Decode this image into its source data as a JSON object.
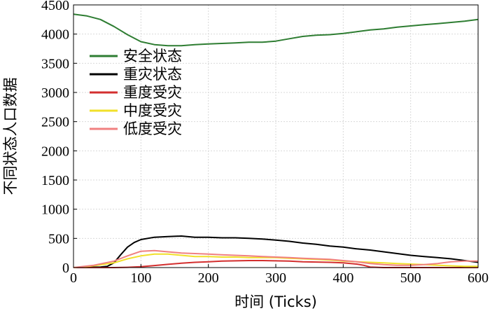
{
  "chart_data": {
    "type": "line",
    "xlabel": "时间 (Ticks)",
    "ylabel": "不同状态人口数据",
    "xlim": [
      0,
      600
    ],
    "ylim": [
      0,
      4500
    ],
    "xticks": [
      0,
      100,
      200,
      300,
      400,
      500,
      600
    ],
    "yticks": [
      0,
      500,
      1000,
      1500,
      2000,
      2500,
      3000,
      3500,
      4000,
      4500
    ],
    "grid": true,
    "legend_position": "top-left",
    "series": [
      {
        "name": "安全状态",
        "color": "#2e7d32",
        "x": [
          0,
          20,
          40,
          60,
          80,
          100,
          120,
          140,
          160,
          180,
          200,
          220,
          240,
          260,
          280,
          300,
          320,
          340,
          360,
          380,
          400,
          420,
          440,
          460,
          480,
          500,
          520,
          540,
          560,
          580,
          600
        ],
        "y": [
          4340,
          4310,
          4250,
          4130,
          3990,
          3870,
          3820,
          3800,
          3800,
          3820,
          3830,
          3840,
          3850,
          3860,
          3860,
          3880,
          3920,
          3960,
          3980,
          3990,
          4010,
          4040,
          4070,
          4090,
          4120,
          4140,
          4160,
          4180,
          4200,
          4220,
          4250
        ]
      },
      {
        "name": "重灾状态",
        "color": "#000000",
        "x": [
          0,
          20,
          40,
          50,
          60,
          70,
          80,
          90,
          100,
          120,
          140,
          160,
          180,
          200,
          220,
          240,
          260,
          280,
          300,
          320,
          340,
          360,
          380,
          400,
          420,
          440,
          460,
          480,
          500,
          520,
          540,
          560,
          580,
          600
        ],
        "y": [
          0,
          5,
          10,
          20,
          80,
          220,
          350,
          430,
          480,
          520,
          530,
          540,
          520,
          520,
          510,
          510,
          500,
          490,
          470,
          450,
          420,
          400,
          370,
          350,
          320,
          300,
          270,
          240,
          210,
          190,
          170,
          150,
          120,
          90
        ]
      },
      {
        "name": "重度受灾",
        "color": "#d32f2f",
        "x": [
          0,
          60,
          80,
          100,
          120,
          140,
          160,
          180,
          200,
          220,
          240,
          260,
          280,
          300,
          320,
          340,
          360,
          380,
          400,
          420,
          430,
          440,
          460,
          480,
          500,
          520,
          540,
          560,
          580,
          600
        ],
        "y": [
          0,
          0,
          5,
          15,
          35,
          55,
          75,
          90,
          100,
          110,
          115,
          120,
          120,
          115,
          110,
          100,
          95,
          90,
          80,
          60,
          40,
          10,
          0,
          0,
          0,
          0,
          0,
          0,
          0,
          0
        ]
      },
      {
        "name": "中度受灾",
        "color": "#f1e02a",
        "x": [
          0,
          30,
          60,
          80,
          100,
          120,
          140,
          160,
          180,
          200,
          220,
          240,
          260,
          280,
          300,
          320,
          340,
          360,
          380,
          400,
          420,
          440,
          460,
          480,
          500,
          520,
          540,
          560,
          580,
          600
        ],
        "y": [
          0,
          30,
          80,
          150,
          200,
          230,
          230,
          210,
          190,
          190,
          180,
          180,
          170,
          170,
          170,
          160,
          150,
          140,
          130,
          110,
          100,
          90,
          80,
          70,
          60,
          50,
          40,
          30,
          20,
          20
        ]
      },
      {
        "name": "低度受灾",
        "color": "#f08080",
        "x": [
          0,
          30,
          60,
          80,
          100,
          120,
          140,
          160,
          180,
          200,
          220,
          240,
          260,
          280,
          300,
          320,
          340,
          360,
          380,
          400,
          420,
          440,
          460,
          480,
          500,
          520,
          540,
          560,
          580,
          600
        ],
        "y": [
          0,
          40,
          110,
          200,
          280,
          290,
          270,
          250,
          240,
          230,
          220,
          210,
          200,
          190,
          180,
          170,
          160,
          150,
          140,
          120,
          100,
          70,
          50,
          40,
          40,
          50,
          70,
          100,
          110,
          110
        ]
      }
    ]
  }
}
